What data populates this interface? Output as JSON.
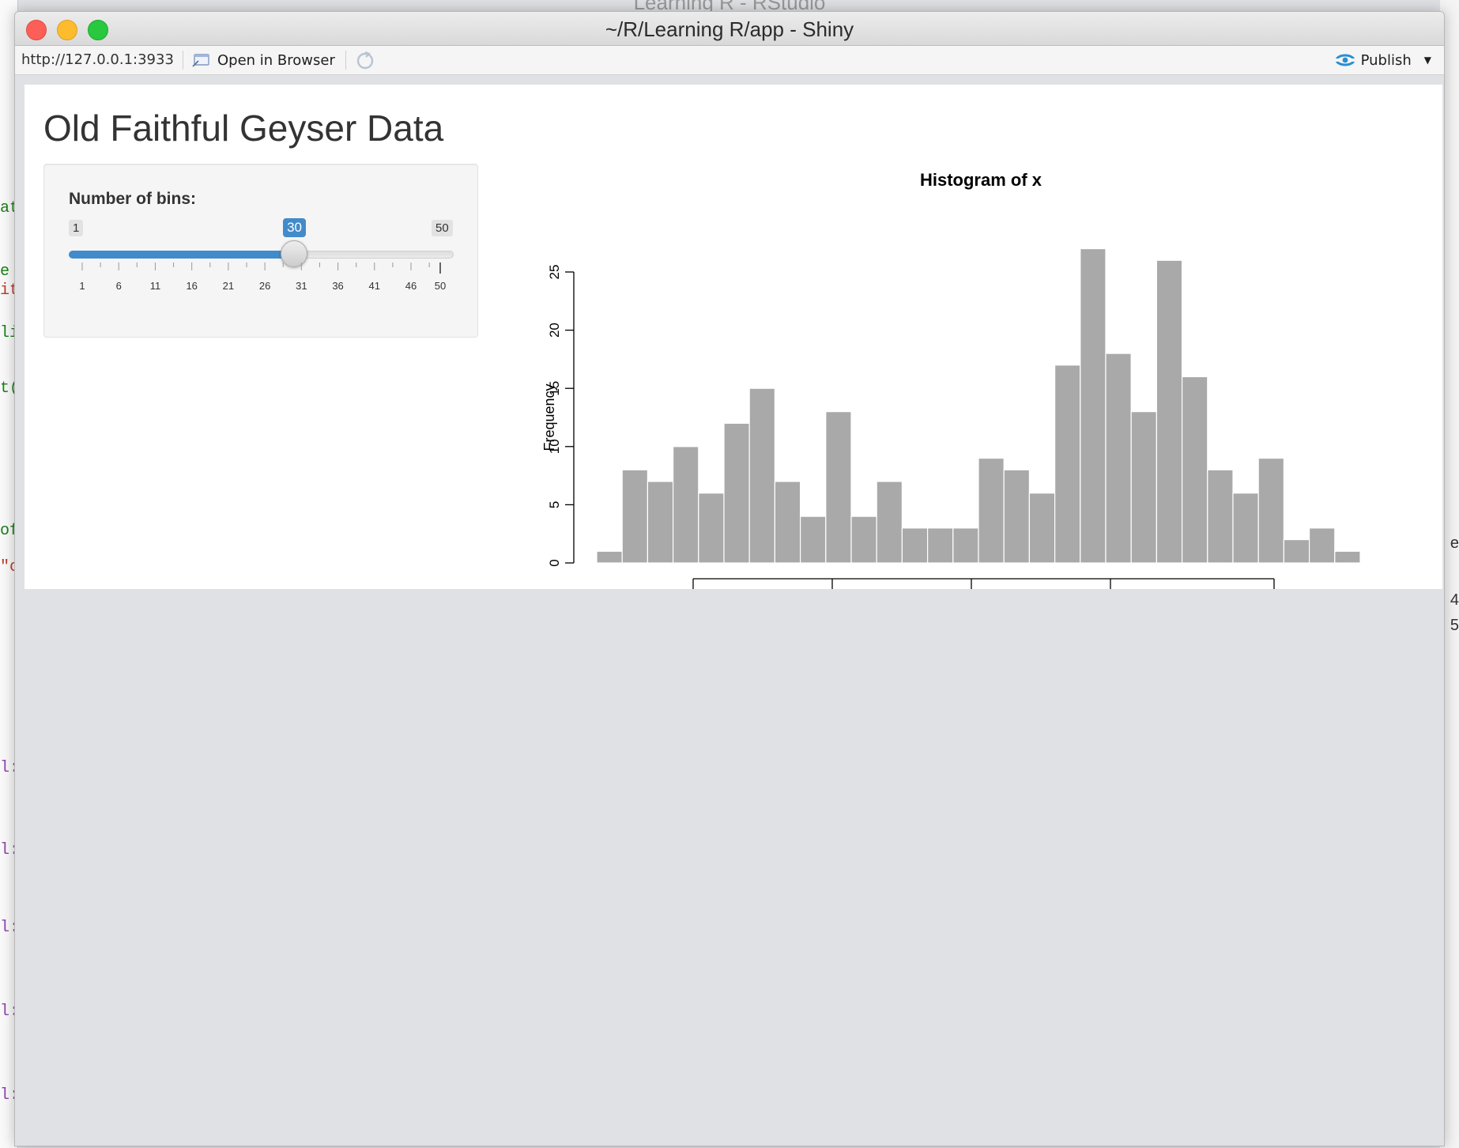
{
  "background": {
    "title": "Learning R - RStudio",
    "code_fragments": [
      "at",
      "e",
      "it",
      "li",
      "t(",
      "of",
      "\"c",
      "l:",
      "l:",
      "l:",
      "l:",
      "l:"
    ],
    "right_fragments": [
      "e",
      "4",
      "5"
    ]
  },
  "window": {
    "title": "~/R/Learning R/app - Shiny",
    "url": "http://127.0.0.1:3933",
    "open_browser_label": "Open in Browser",
    "publish_label": "Publish"
  },
  "app": {
    "title": "Old Faithful Geyser Data",
    "slider": {
      "label": "Number of bins:",
      "min": 1,
      "max": 50,
      "value": 30,
      "min_label": "1",
      "max_label": "50",
      "value_label": "30",
      "tick_labels": [
        "1",
        "6",
        "11",
        "16",
        "21",
        "26",
        "31",
        "36",
        "41",
        "46",
        "50"
      ],
      "accent_color": "#428bca"
    }
  },
  "chart_data": {
    "type": "bar",
    "title": "Histogram of x",
    "ylabel": "Frequency",
    "xlabel": "",
    "y_ticks": [
      0,
      5,
      10,
      15,
      20,
      25
    ],
    "ylim": [
      0,
      27
    ],
    "values": [
      1,
      8,
      7,
      10,
      6,
      12,
      15,
      7,
      4,
      13,
      4,
      7,
      3,
      3,
      3,
      9,
      8,
      6,
      17,
      27,
      18,
      13,
      26,
      16,
      8,
      6,
      9,
      2,
      3,
      1
    ],
    "bar_color": "#a9a9a9",
    "grid": false
  }
}
